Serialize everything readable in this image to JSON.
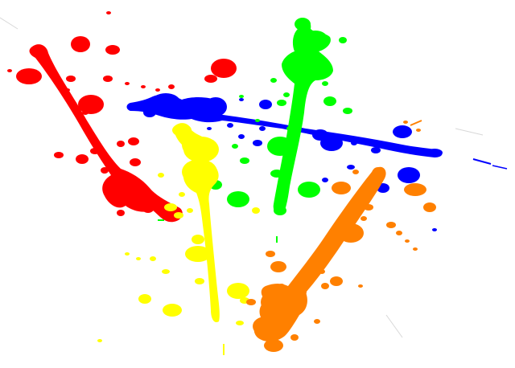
{
  "image": {
    "subject": "paint splatter",
    "background": "#ffffff"
  },
  "colors": {
    "red": "#ff0000",
    "blue": "#0000ff",
    "green": "#00ff00",
    "yellow": "#ffff00",
    "orange": "#ff8000"
  }
}
